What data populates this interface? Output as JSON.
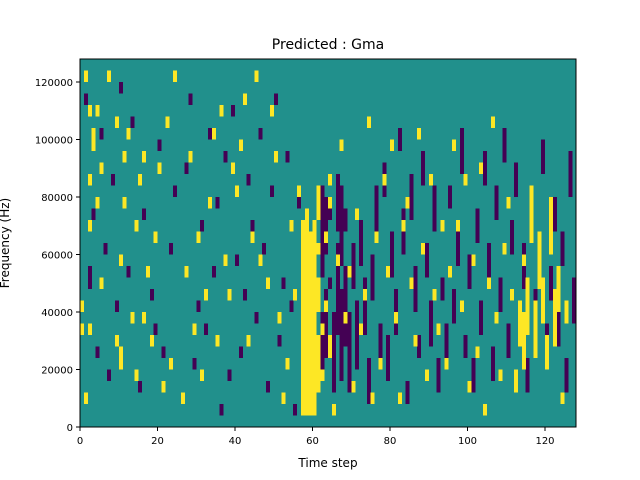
{
  "chart_data": {
    "type": "heatmap",
    "title": "Predicted : Gma",
    "xlabel": "Time step",
    "ylabel": "Frequency (Hz)",
    "xlim": [
      0,
      128
    ],
    "ylim": [
      0,
      128000
    ],
    "x_ticks": [
      0,
      20,
      40,
      60,
      80,
      100,
      120
    ],
    "y_ticks": [
      0,
      20000,
      40000,
      60000,
      80000,
      100000,
      120000
    ],
    "n_time_steps": 128,
    "n_freq_bins": 32,
    "colors": {
      "background": "#21908c",
      "high": "#fde725",
      "low": "#440154"
    },
    "segments_high": [
      [
        0,
        8,
        9
      ],
      [
        0,
        10,
        11
      ],
      [
        1,
        2,
        3
      ],
      [
        1,
        30,
        31
      ],
      [
        2,
        17,
        18
      ],
      [
        2,
        21,
        22
      ],
      [
        2,
        27,
        28
      ],
      [
        2,
        8,
        9
      ],
      [
        3,
        24,
        26
      ],
      [
        4,
        19,
        20
      ],
      [
        4,
        27,
        28
      ],
      [
        5,
        22,
        23
      ],
      [
        5,
        12,
        13
      ],
      [
        7,
        30,
        31
      ],
      [
        9,
        7,
        8
      ],
      [
        9,
        26,
        27
      ],
      [
        10,
        14,
        15
      ],
      [
        10,
        5,
        7
      ],
      [
        11,
        19,
        20
      ],
      [
        11,
        23,
        24
      ],
      [
        12,
        25,
        26
      ],
      [
        13,
        9,
        10
      ],
      [
        14,
        4,
        5
      ],
      [
        14,
        17,
        18
      ],
      [
        15,
        21,
        22
      ],
      [
        16,
        9,
        10
      ],
      [
        16,
        23,
        24
      ],
      [
        17,
        13,
        14
      ],
      [
        18,
        7,
        8
      ],
      [
        19,
        16,
        17
      ],
      [
        20,
        22,
        23
      ],
      [
        21,
        3,
        4
      ],
      [
        22,
        26,
        27
      ],
      [
        23,
        5,
        6
      ],
      [
        24,
        30,
        31
      ],
      [
        26,
        2,
        3
      ],
      [
        27,
        13,
        14
      ],
      [
        28,
        23,
        24
      ],
      [
        29,
        8,
        9
      ],
      [
        30,
        16,
        17
      ],
      [
        31,
        4,
        5
      ],
      [
        32,
        11,
        12
      ],
      [
        33,
        19,
        20
      ],
      [
        34,
        25,
        26
      ],
      [
        35,
        7,
        8
      ],
      [
        36,
        27,
        28
      ],
      [
        37,
        14,
        15
      ],
      [
        38,
        11,
        12
      ],
      [
        39,
        22,
        23
      ],
      [
        40,
        20,
        21
      ],
      [
        41,
        24,
        25
      ],
      [
        42,
        28,
        29
      ],
      [
        43,
        7,
        8
      ],
      [
        44,
        16,
        17
      ],
      [
        45,
        30,
        31
      ],
      [
        46,
        14,
        15
      ],
      [
        48,
        12,
        13
      ],
      [
        49,
        27,
        28
      ],
      [
        50,
        23,
        24
      ],
      [
        51,
        9,
        10
      ],
      [
        52,
        2,
        3
      ],
      [
        53,
        5,
        6
      ],
      [
        54,
        17,
        18
      ],
      [
        55,
        11,
        12
      ],
      [
        56,
        20,
        21
      ],
      [
        57,
        1,
        18
      ],
      [
        58,
        1,
        19
      ],
      [
        59,
        1,
        17
      ],
      [
        60,
        1,
        18
      ],
      [
        61,
        3,
        8
      ],
      [
        61,
        10,
        13
      ],
      [
        61,
        15,
        16
      ],
      [
        61,
        18,
        21
      ],
      [
        62,
        4,
        5
      ],
      [
        62,
        8,
        9
      ],
      [
        63,
        10,
        11
      ],
      [
        63,
        16,
        17
      ],
      [
        64,
        6,
        8
      ],
      [
        64,
        19,
        20
      ],
      [
        64,
        21,
        22
      ],
      [
        65,
        1,
        2
      ],
      [
        66,
        14,
        15
      ],
      [
        67,
        24,
        25
      ],
      [
        68,
        9,
        10
      ],
      [
        69,
        13,
        14
      ],
      [
        70,
        3,
        4
      ],
      [
        71,
        18,
        19
      ],
      [
        72,
        8,
        9
      ],
      [
        73,
        11,
        12
      ],
      [
        74,
        26,
        27
      ],
      [
        75,
        2,
        3
      ],
      [
        76,
        16,
        17
      ],
      [
        77,
        5,
        6
      ],
      [
        78,
        21,
        22
      ],
      [
        79,
        13,
        14
      ],
      [
        80,
        24,
        25
      ],
      [
        81,
        9,
        10
      ],
      [
        82,
        2,
        3
      ],
      [
        83,
        17,
        18
      ],
      [
        84,
        19,
        20
      ],
      [
        85,
        12,
        13
      ],
      [
        86,
        7,
        8
      ],
      [
        87,
        25,
        26
      ],
      [
        88,
        15,
        16
      ],
      [
        89,
        4,
        5
      ],
      [
        90,
        21,
        22
      ],
      [
        91,
        11,
        12
      ],
      [
        92,
        8,
        9
      ],
      [
        93,
        17,
        18
      ],
      [
        94,
        5,
        6
      ],
      [
        95,
        13,
        14
      ],
      [
        96,
        24,
        25
      ],
      [
        97,
        17,
        18
      ],
      [
        98,
        10,
        11
      ],
      [
        99,
        21,
        22
      ],
      [
        100,
        3,
        4
      ],
      [
        101,
        14,
        15
      ],
      [
        102,
        6,
        7
      ],
      [
        103,
        22,
        23
      ],
      [
        104,
        1,
        2
      ],
      [
        105,
        12,
        13
      ],
      [
        106,
        26,
        27
      ],
      [
        107,
        9,
        10
      ],
      [
        108,
        4,
        5
      ],
      [
        109,
        15,
        16
      ],
      [
        110,
        19,
        20
      ],
      [
        111,
        11,
        12
      ],
      [
        112,
        3,
        5
      ],
      [
        113,
        7,
        11
      ],
      [
        114,
        5,
        10
      ],
      [
        114,
        14,
        15
      ],
      [
        115,
        8,
        13
      ],
      [
        116,
        16,
        21
      ],
      [
        117,
        6,
        11
      ],
      [
        118,
        12,
        17
      ],
      [
        119,
        9,
        13
      ],
      [
        120,
        5,
        8
      ],
      [
        121,
        15,
        20
      ],
      [
        122,
        7,
        12
      ],
      [
        123,
        10,
        14
      ],
      [
        124,
        2,
        3
      ],
      [
        125,
        9,
        11
      ]
    ],
    "segments_low": [
      [
        1,
        28,
        29
      ],
      [
        2,
        12,
        14
      ],
      [
        3,
        18,
        19
      ],
      [
        4,
        6,
        7
      ],
      [
        5,
        25,
        26
      ],
      [
        6,
        15,
        16
      ],
      [
        7,
        4,
        5
      ],
      [
        8,
        21,
        22
      ],
      [
        9,
        10,
        11
      ],
      [
        10,
        29,
        30
      ],
      [
        12,
        13,
        14
      ],
      [
        13,
        26,
        27
      ],
      [
        15,
        3,
        4
      ],
      [
        16,
        18,
        19
      ],
      [
        18,
        11,
        12
      ],
      [
        19,
        8,
        9
      ],
      [
        20,
        24,
        25
      ],
      [
        21,
        6,
        7
      ],
      [
        23,
        15,
        16
      ],
      [
        24,
        20,
        21
      ],
      [
        26,
        2,
        3
      ],
      [
        27,
        22,
        23
      ],
      [
        28,
        28,
        29
      ],
      [
        29,
        5,
        6
      ],
      [
        30,
        10,
        11
      ],
      [
        31,
        17,
        18
      ],
      [
        32,
        8,
        9
      ],
      [
        33,
        25,
        26
      ],
      [
        34,
        13,
        14
      ],
      [
        35,
        19,
        20
      ],
      [
        36,
        1,
        2
      ],
      [
        37,
        23,
        24
      ],
      [
        38,
        4,
        5
      ],
      [
        39,
        27,
        28
      ],
      [
        40,
        14,
        15
      ],
      [
        41,
        6,
        7
      ],
      [
        42,
        11,
        12
      ],
      [
        43,
        21,
        22
      ],
      [
        44,
        17,
        18
      ],
      [
        45,
        9,
        10
      ],
      [
        46,
        25,
        26
      ],
      [
        47,
        15,
        16
      ],
      [
        48,
        3,
        4
      ],
      [
        49,
        20,
        21
      ],
      [
        50,
        28,
        29
      ],
      [
        51,
        7,
        8
      ],
      [
        52,
        12,
        13
      ],
      [
        53,
        23,
        24
      ],
      [
        54,
        10,
        11
      ],
      [
        55,
        1,
        2
      ],
      [
        56,
        19,
        20
      ],
      [
        62,
        4,
        10
      ],
      [
        62,
        13,
        21
      ],
      [
        63,
        6,
        12
      ],
      [
        63,
        15,
        20
      ],
      [
        64,
        12,
        13
      ],
      [
        64,
        18,
        19
      ],
      [
        65,
        3,
        10
      ],
      [
        66,
        8,
        16
      ],
      [
        66,
        17,
        22
      ],
      [
        67,
        4,
        12
      ],
      [
        67,
        14,
        21
      ],
      [
        68,
        7,
        14
      ],
      [
        68,
        17,
        19
      ],
      [
        69,
        3,
        10
      ],
      [
        70,
        12,
        16
      ],
      [
        71,
        5,
        11
      ],
      [
        72,
        14,
        18
      ],
      [
        73,
        8,
        13
      ],
      [
        74,
        2,
        6
      ],
      [
        75,
        11,
        15
      ],
      [
        76,
        17,
        21
      ],
      [
        77,
        6,
        9
      ],
      [
        78,
        20,
        23
      ],
      [
        79,
        4,
        8
      ],
      [
        80,
        13,
        17
      ],
      [
        81,
        8,
        12
      ],
      [
        82,
        24,
        26
      ],
      [
        83,
        15,
        19
      ],
      [
        84,
        2,
        4
      ],
      [
        85,
        18,
        22
      ],
      [
        86,
        10,
        14
      ],
      [
        87,
        6,
        8
      ],
      [
        88,
        21,
        24
      ],
      [
        89,
        13,
        16
      ],
      [
        90,
        7,
        11
      ],
      [
        91,
        17,
        21
      ],
      [
        92,
        3,
        6
      ],
      [
        93,
        11,
        13
      ],
      [
        94,
        5,
        9
      ],
      [
        95,
        19,
        21
      ],
      [
        96,
        9,
        12
      ],
      [
        97,
        14,
        17
      ],
      [
        98,
        22,
        26
      ],
      [
        99,
        6,
        8
      ],
      [
        100,
        12,
        15
      ],
      [
        101,
        3,
        6
      ],
      [
        102,
        16,
        19
      ],
      [
        103,
        8,
        11
      ],
      [
        104,
        21,
        24
      ],
      [
        105,
        13,
        16
      ],
      [
        106,
        4,
        7
      ],
      [
        107,
        18,
        21
      ],
      [
        108,
        10,
        13
      ],
      [
        109,
        23,
        26
      ],
      [
        110,
        6,
        9
      ],
      [
        111,
        15,
        18
      ],
      [
        112,
        20,
        23
      ],
      [
        113,
        8,
        11
      ],
      [
        114,
        12,
        16
      ],
      [
        115,
        3,
        6
      ],
      [
        116,
        18,
        21
      ],
      [
        117,
        9,
        12
      ],
      [
        118,
        13,
        15
      ],
      [
        119,
        22,
        25
      ],
      [
        120,
        5,
        9
      ],
      [
        121,
        11,
        14
      ],
      [
        122,
        17,
        20
      ],
      [
        123,
        7,
        10
      ],
      [
        124,
        14,
        17
      ],
      [
        125,
        3,
        6
      ],
      [
        126,
        20,
        24
      ],
      [
        127,
        9,
        13
      ]
    ]
  }
}
